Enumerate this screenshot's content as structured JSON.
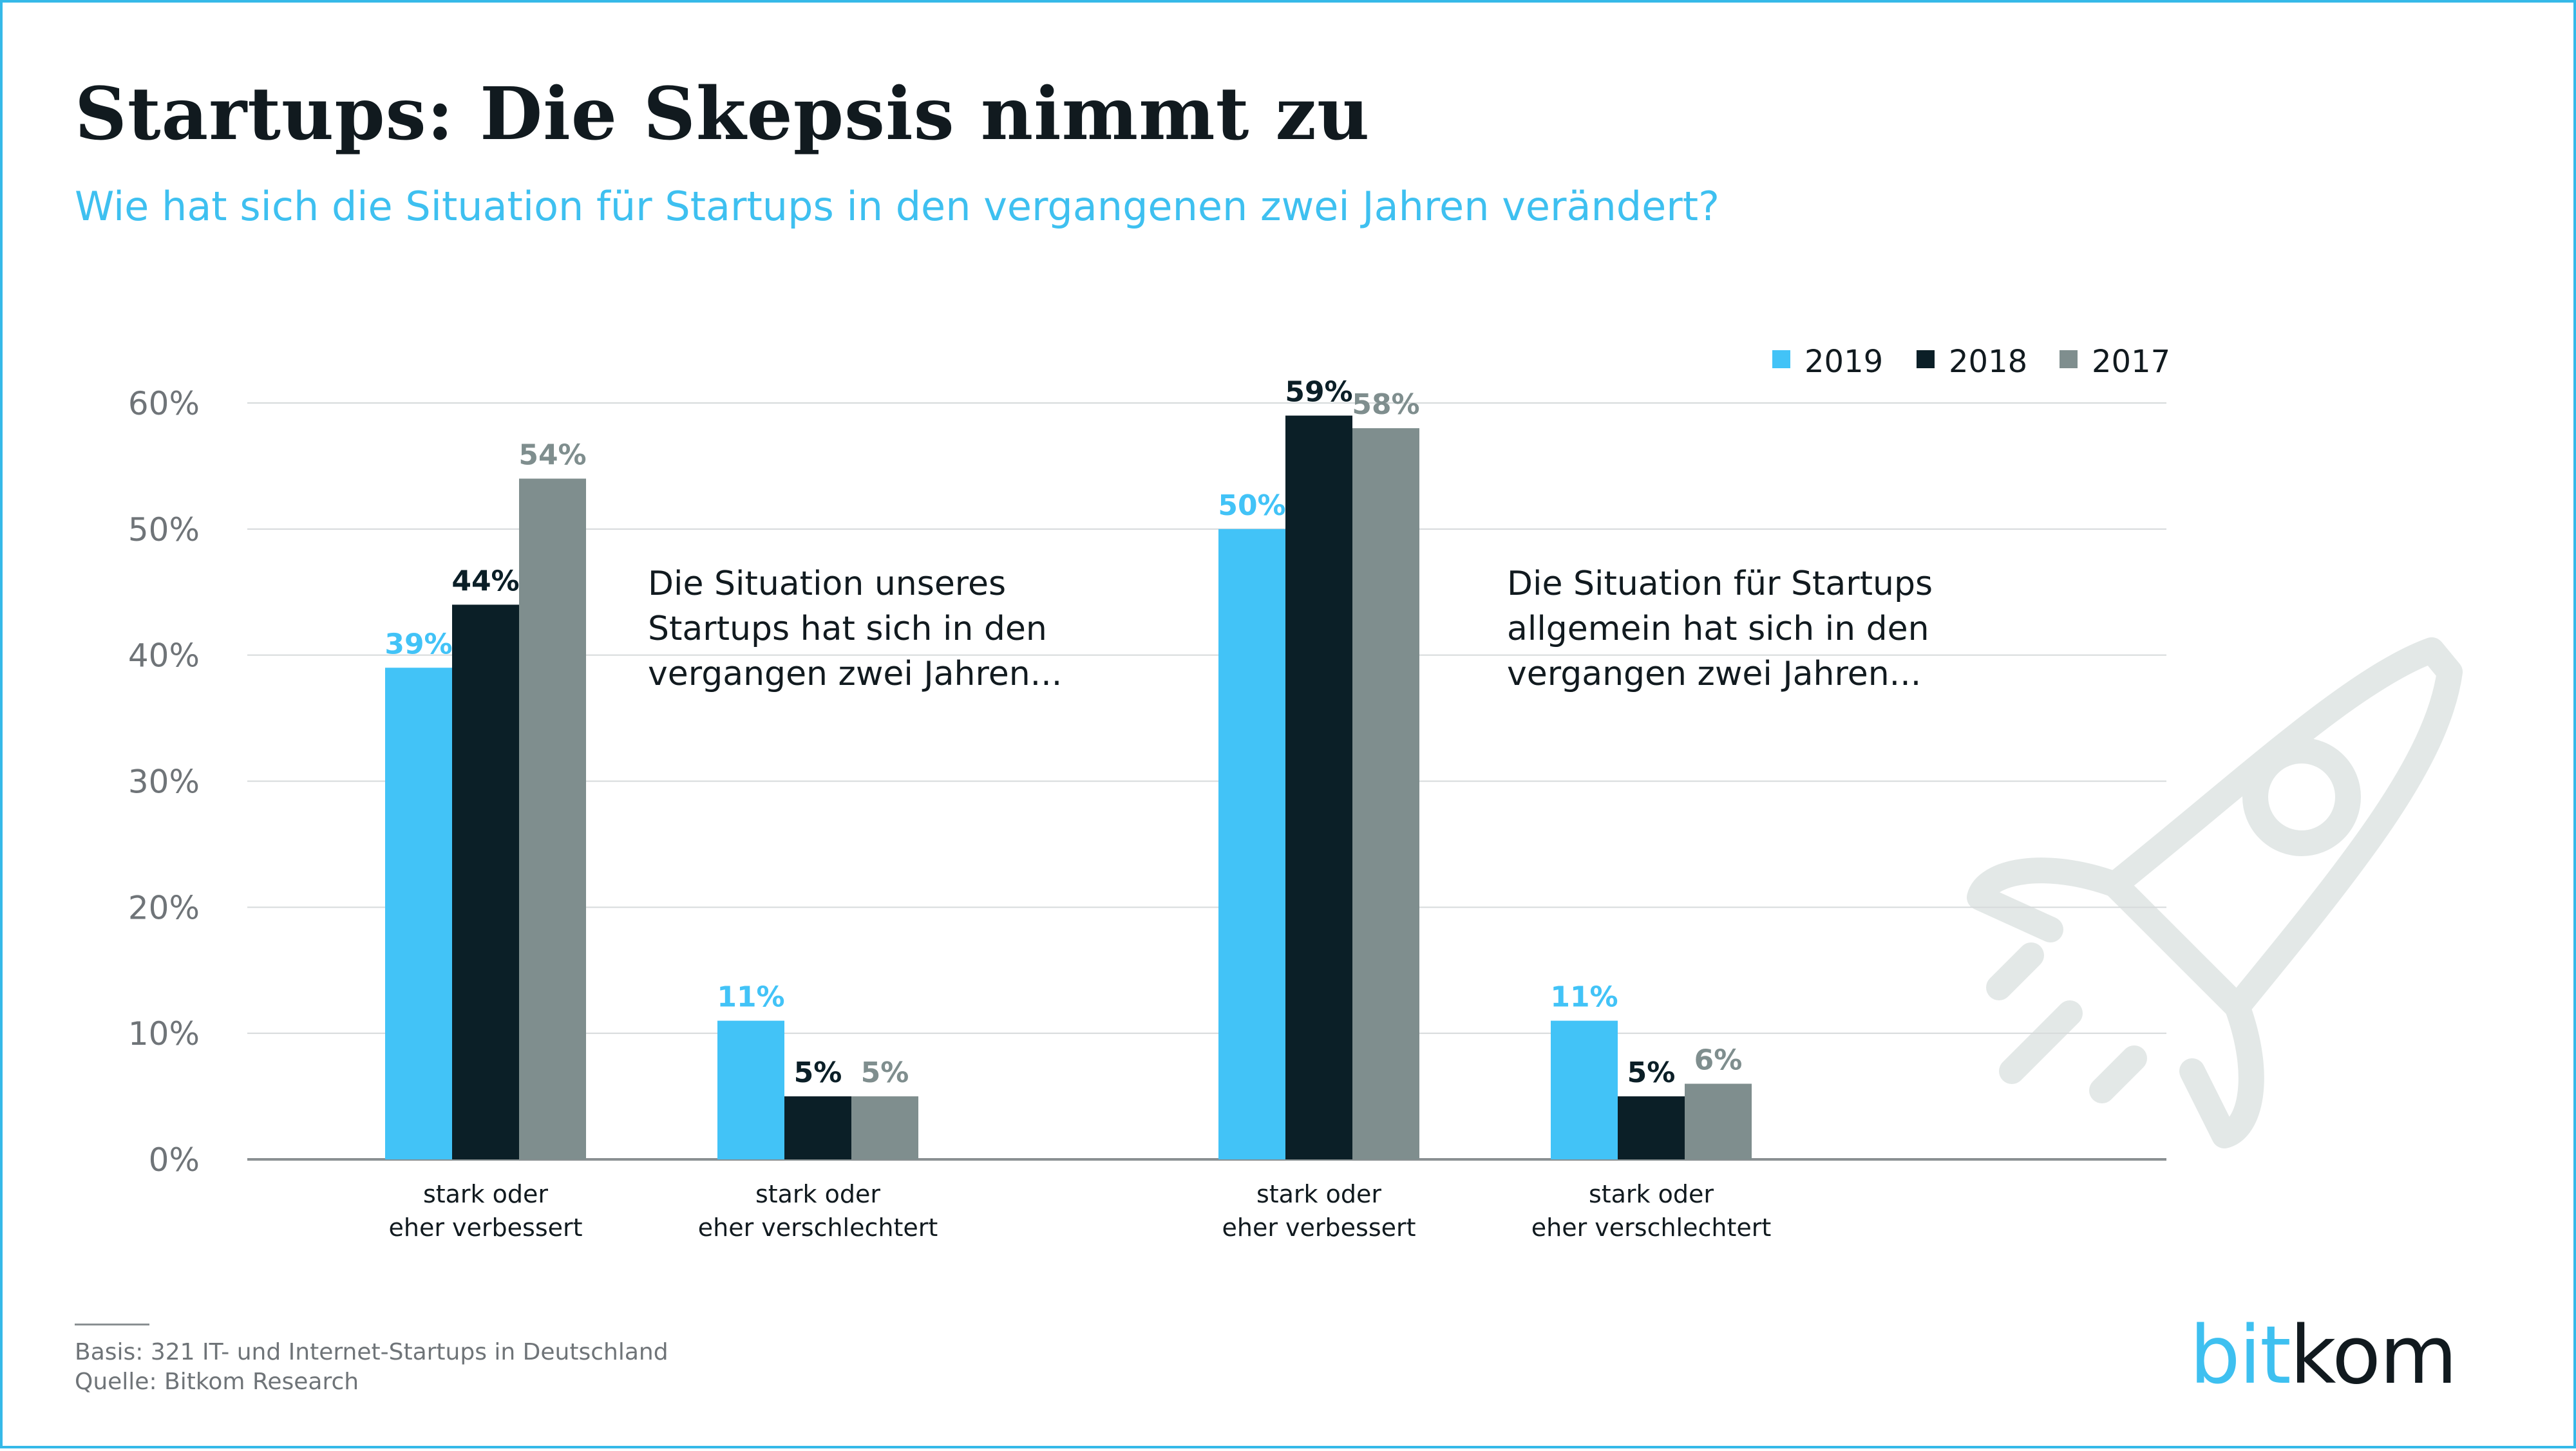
{
  "title": "Startups: Die Skepsis nimmt zu",
  "subtitle": "Wie hat sich die Situation für Startups in den vergangenen zwei Jahren verändert?",
  "legend": [
    {
      "name": "2019",
      "color": "#42c3f7"
    },
    {
      "name": "2018",
      "color": "#0b1f27"
    },
    {
      "name": "2017",
      "color": "#7f8e8e"
    }
  ],
  "chart_data": {
    "type": "bar",
    "ylim": [
      0,
      60
    ],
    "yticks": [
      "0%",
      "10%",
      "20%",
      "30%",
      "40%",
      "50%",
      "60%"
    ],
    "grid": true,
    "legend_position": "top-right",
    "groups": [
      {
        "annotation": [
          "Die Situation unseres",
          "Startups hat sich in den",
          "vergangen zwei Jahren..."
        ],
        "categories": [
          {
            "label": [
              "stark oder",
              "eher verbessert"
            ],
            "values": [
              39,
              44,
              54
            ],
            "labels": [
              "39%",
              "44%",
              "54%"
            ]
          },
          {
            "label": [
              "stark oder",
              "eher verschlechtert"
            ],
            "values": [
              11,
              5,
              5
            ],
            "labels": [
              "11%",
              "5%",
              "5%"
            ]
          }
        ]
      },
      {
        "annotation": [
          "Die Situation für Startups",
          "allgemein hat sich in den",
          "vergangen zwei Jahren..."
        ],
        "categories": [
          {
            "label": [
              "stark oder",
              "eher verbessert"
            ],
            "values": [
              50,
              59,
              58
            ],
            "labels": [
              "50%",
              "59%",
              "58%"
            ]
          },
          {
            "label": [
              "stark oder",
              "eher verschlechtert"
            ],
            "values": [
              11,
              5,
              6
            ],
            "labels": [
              "11%",
              "5%",
              "6%"
            ]
          }
        ]
      }
    ],
    "series_colors": [
      "#42c3f7",
      "#0b1f27",
      "#7f8e8e"
    ],
    "label_colors": [
      "#42c3f7",
      "#0b1f27",
      "#7f8e8e"
    ]
  },
  "footer": {
    "basis": "Basis: 321 IT- und Internet-Startups in Deutschland",
    "source": "Quelle: Bitkom Research"
  },
  "logo": {
    "part1": "bit",
    "part2": "kom",
    "color_primary": "#3ec0f0",
    "color_secondary": "#111a1f"
  },
  "decoration": {
    "icon": "rocket-icon",
    "color": "#e3e8e7"
  }
}
